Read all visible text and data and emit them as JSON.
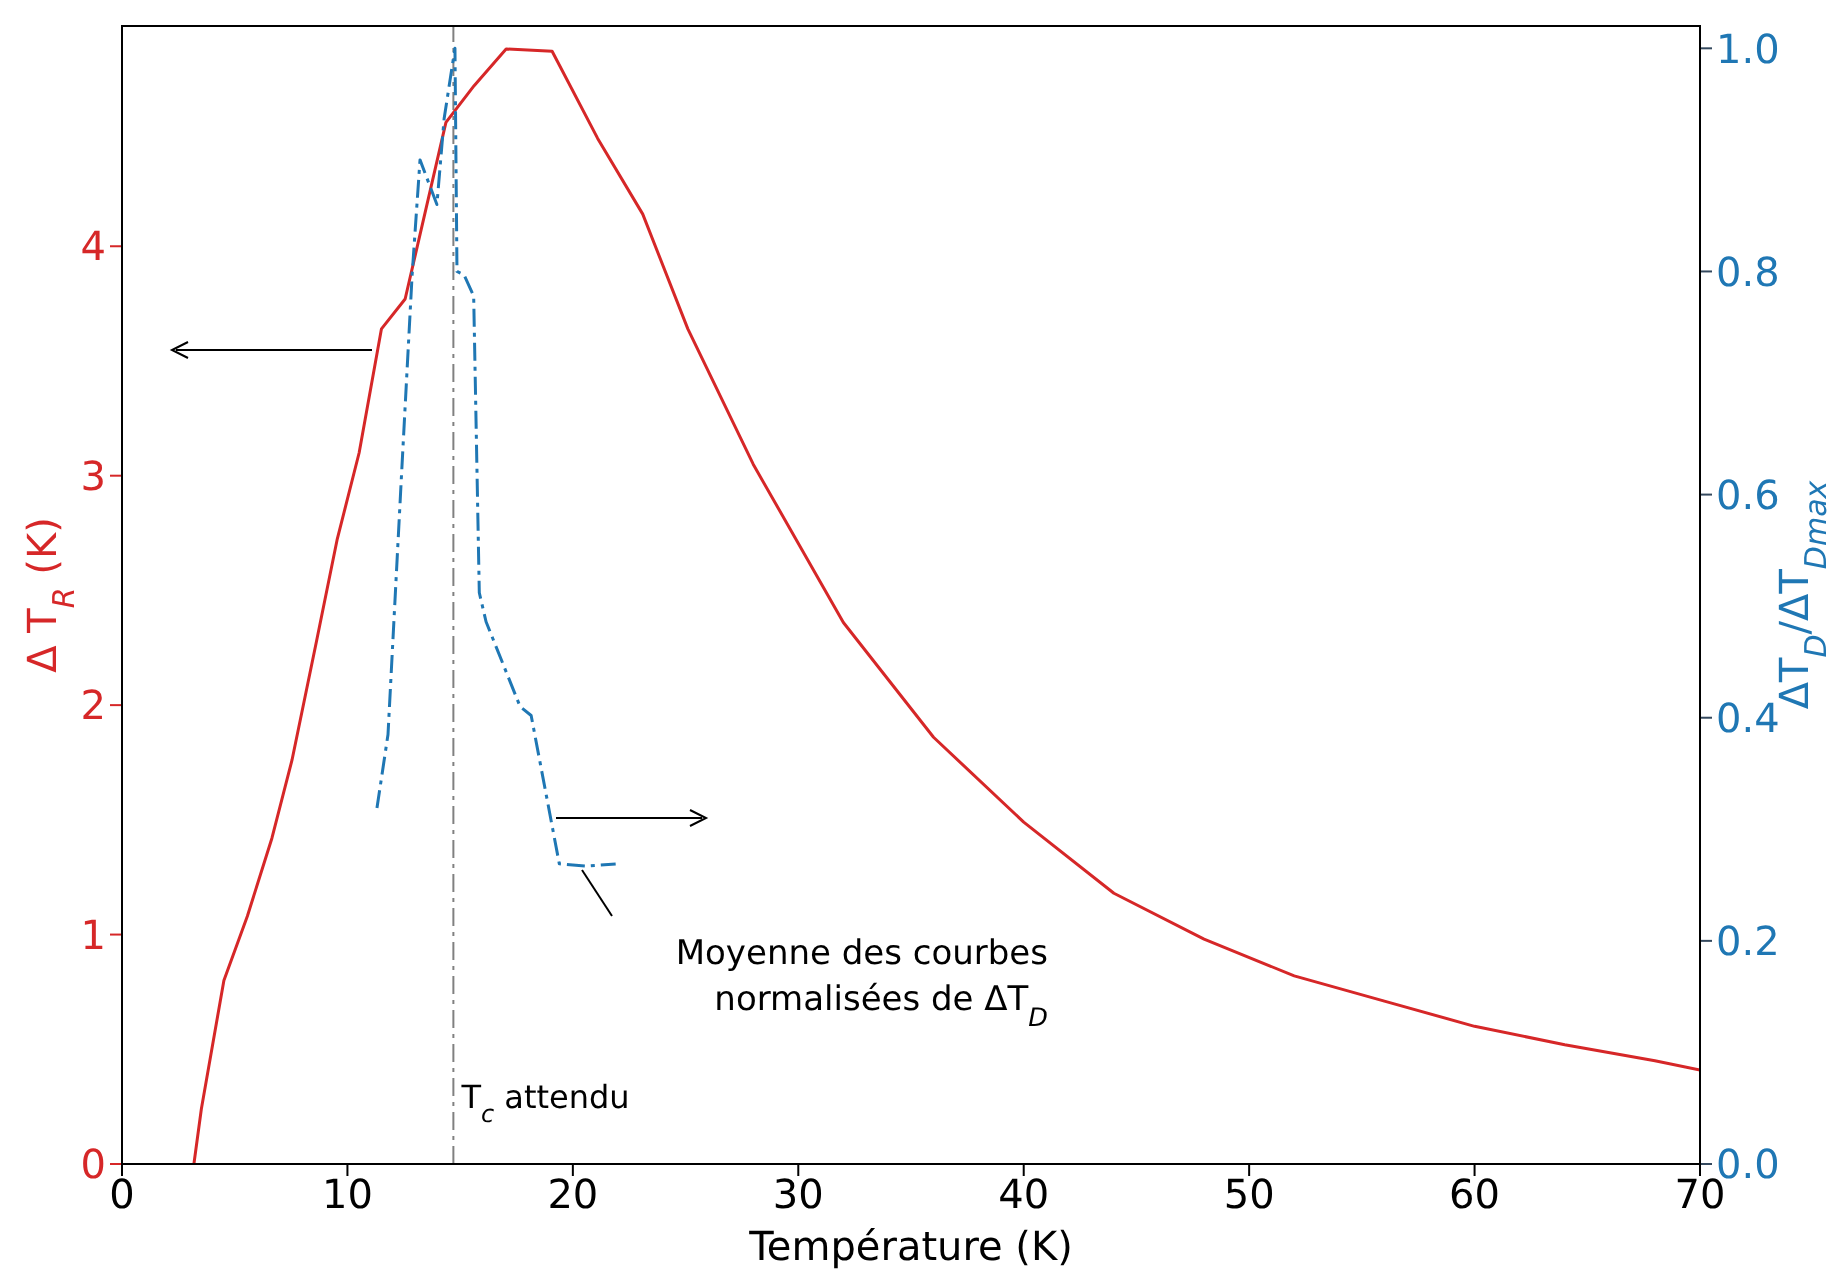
{
  "chart_data": {
    "type": "line",
    "xlabel": "Température (K)",
    "ylabel": "Δ T$_{R}$ (K)",
    "y2label": "ΔT$_{D}$/ΔT$_{Dmax}$",
    "series": [
      {
        "color": "#d62728",
        "line_style": "solid",
        "x": [
          3.19,
          3.52,
          4.52,
          5.56,
          6.65,
          7.54,
          8.61,
          9.54,
          10.52,
          11.51,
          12.56,
          14.37,
          15.62,
          17.04,
          19.08,
          21.1,
          23.1,
          25.1,
          28.0,
          32.0,
          36.0,
          40.0,
          44.0,
          48.0,
          52.0,
          56.0,
          60.0,
          64.0,
          68.0,
          70.0
        ],
        "values": [
          0,
          0.24,
          0.8,
          1.08,
          1.42,
          1.76,
          2.27,
          2.72,
          3.1,
          3.64,
          3.77,
          4.54,
          4.7,
          4.86,
          4.85,
          4.47,
          4.14,
          3.64,
          3.05,
          2.36,
          1.86,
          1.49,
          1.18,
          0.98,
          0.82,
          0.71,
          0.6,
          0.52,
          0.45,
          0.41
        ]
      },
      {
        "color": "#1f77b4",
        "line_style": "dashed",
        "axis": "y2",
        "x": [
          11.31,
          11.8,
          12.4,
          12.87,
          13.22,
          13.97,
          14.29,
          14.77,
          14.86,
          15.17,
          15.6,
          15.85,
          16.15,
          17.66,
          18.15,
          19.4,
          20.6,
          21.9
        ],
        "values": [
          0.319,
          0.385,
          0.618,
          0.797,
          0.9,
          0.86,
          0.937,
          1.0,
          0.8,
          0.797,
          0.778,
          0.512,
          0.486,
          0.41,
          0.402,
          0.269,
          0.267,
          0.269
        ]
      }
    ],
    "xlim": [
      0,
      70
    ],
    "xticks": [
      0,
      10,
      20,
      30,
      40,
      50,
      60,
      70
    ],
    "ylim": [
      0,
      4.96
    ],
    "yticks": [
      0,
      1,
      2,
      3,
      4
    ],
    "y2lim": [
      0,
      1.02
    ],
    "y2ticks": [
      {
        "value": 0,
        "label": "0.0"
      },
      {
        "value": 0.2,
        "label": "0.2"
      },
      {
        "value": 0.4,
        "label": "0.4"
      },
      {
        "value": 0.6,
        "label": "0.6"
      },
      {
        "value": 0.8,
        "label": "0.8"
      },
      {
        "value": 1,
        "label": "1.0"
      }
    ],
    "ref_lines": [
      {
        "axis": "x",
        "value": 14.7,
        "label": "T$_{c}$ attendu",
        "color": "#808080",
        "line_style": "dashed"
      }
    ],
    "annotations": [
      "Moyenne des courbes\nnormalisées de ΔT$_{D}$"
    ]
  }
}
